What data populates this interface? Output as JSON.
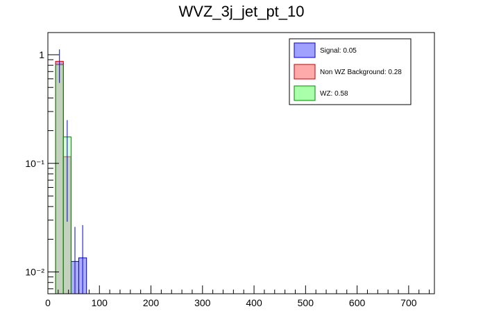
{
  "chart_data": {
    "type": "bar",
    "title": "WVZ_3j_jet_pt_10",
    "xlabel": "",
    "ylabel": "",
    "x_axis": {
      "range": [
        0,
        750
      ],
      "ticks": [
        0,
        100,
        200,
        300,
        400,
        500,
        600,
        700
      ],
      "tick_labels": [
        "0",
        "100",
        "200",
        "300",
        "400",
        "500",
        "600",
        "700"
      ]
    },
    "y_axis": {
      "scale": "log",
      "range": [
        0.0063,
        1.6
      ],
      "ticks": [
        0.01,
        0.1,
        1
      ],
      "tick_labels": [
        "10⁻²",
        "10⁻¹",
        "1"
      ]
    },
    "bin_width": 15,
    "legend": {
      "placement": "top-right",
      "entries": [
        {
          "label": "Signal: 0.05",
          "color": "#a0a0ff"
        },
        {
          "label": "Non WZ Background: 0.28",
          "color": "#ffaaaa"
        },
        {
          "label": "WZ: 0.58",
          "color": "#aaffaa"
        }
      ]
    },
    "series": [
      {
        "name": "Signal: 0.05",
        "color": "#a0a0ff",
        "edge": "#0000cc",
        "bins": [
          {
            "x0": 15,
            "x1": 30,
            "y": 0.84,
            "err_lo": 0.55,
            "err_hi": 1.12
          },
          {
            "x0": 30,
            "x1": 45,
            "y": 0.115,
            "err_lo": 0.029,
            "err_hi": 0.25
          },
          {
            "x0": 45,
            "x1": 60,
            "y": 0.0125,
            "err_lo": 0.0063,
            "err_hi": 0.026
          },
          {
            "x0": 60,
            "x1": 75,
            "y": 0.0135,
            "err_lo": 0.0063,
            "err_hi": 0.027
          }
        ]
      },
      {
        "name": "Non WZ Background: 0.28",
        "color": "#ffaaaa",
        "edge": "#cc0000",
        "bins": [
          {
            "x0": 15,
            "x1": 30,
            "y": 0.87
          },
          {
            "x0": 30,
            "x1": 45,
            "y": 0.115
          }
        ]
      },
      {
        "name": "WZ: 0.58",
        "color": "#aaffaa",
        "edge": "#008800",
        "bins": [
          {
            "x0": 15,
            "x1": 30,
            "y": 0.81
          },
          {
            "x0": 30,
            "x1": 45,
            "y": 0.175
          }
        ]
      }
    ]
  }
}
